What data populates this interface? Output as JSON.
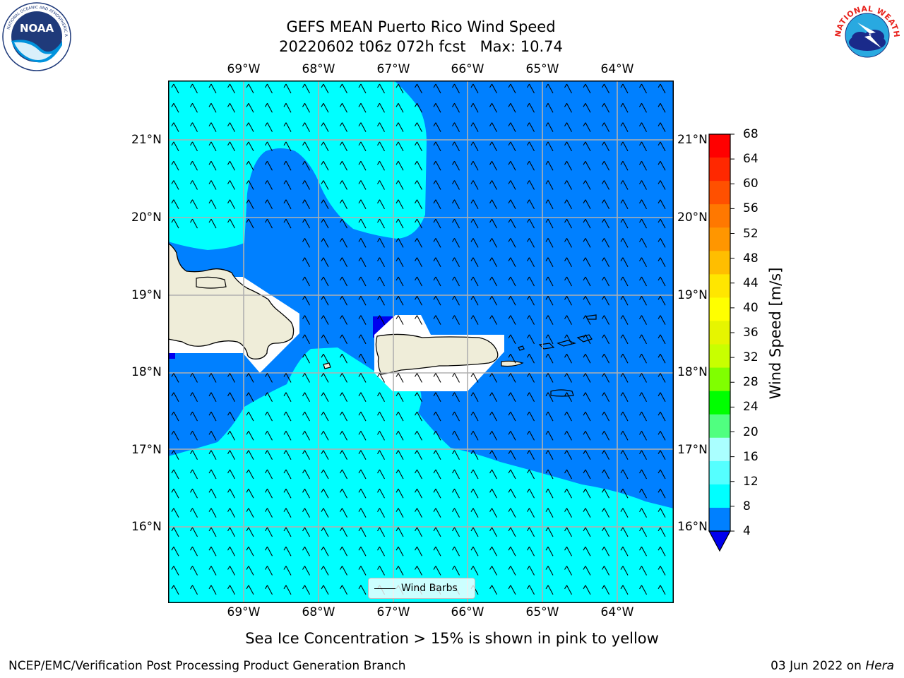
{
  "title": {
    "line1": "GEFS MEAN Puerto Rico Wind Speed",
    "line2": "20220602 t06z 072h fcst   Max: 10.74"
  },
  "logos": {
    "left": "NOAA",
    "right": "NATIONAL WEATHER SERVICE"
  },
  "map": {
    "lon_labels": [
      "69°W",
      "68°W",
      "67°W",
      "66°W",
      "65°W",
      "64°W"
    ],
    "lat_labels": [
      "21°N",
      "20°N",
      "19°N",
      "18°N",
      "17°N",
      "16°N"
    ],
    "legend_label": "Wind Barbs",
    "lon_range": [
      -70.0,
      -63.3
    ],
    "lat_range": [
      15.0,
      21.75
    ],
    "colors": {
      "land": "#efedd9",
      "band_4_8": "#0080ff",
      "band_8_12": "#00ffff",
      "band_below_4": "#0000ee",
      "grid": "#b0b0b0"
    }
  },
  "colorbar": {
    "label": "Wind Speed [m/s]",
    "ticks": [
      "68",
      "64",
      "60",
      "56",
      "52",
      "48",
      "44",
      "40",
      "36",
      "32",
      "28",
      "24",
      "20",
      "16",
      "12",
      "8",
      "4"
    ],
    "colors_top_to_bottom": [
      "#ff0000",
      "#ff2800",
      "#ff5000",
      "#ff7800",
      "#ff9600",
      "#ffbe00",
      "#ffe600",
      "#ffff00",
      "#e6f500",
      "#c8ff00",
      "#80ff00",
      "#00ff00",
      "#50ff80",
      "#aaffff",
      "#55ffff",
      "#00ffff",
      "#0080ff"
    ],
    "min_extend_color": "#0000ee"
  },
  "note": "Sea Ice Concentration > 15% is shown in pink to yellow",
  "footer": {
    "left": "NCEP/EMC/Verification Post Processing Product Generation Branch",
    "date": "03 Jun 2022 on ",
    "machine": "Hera"
  }
}
